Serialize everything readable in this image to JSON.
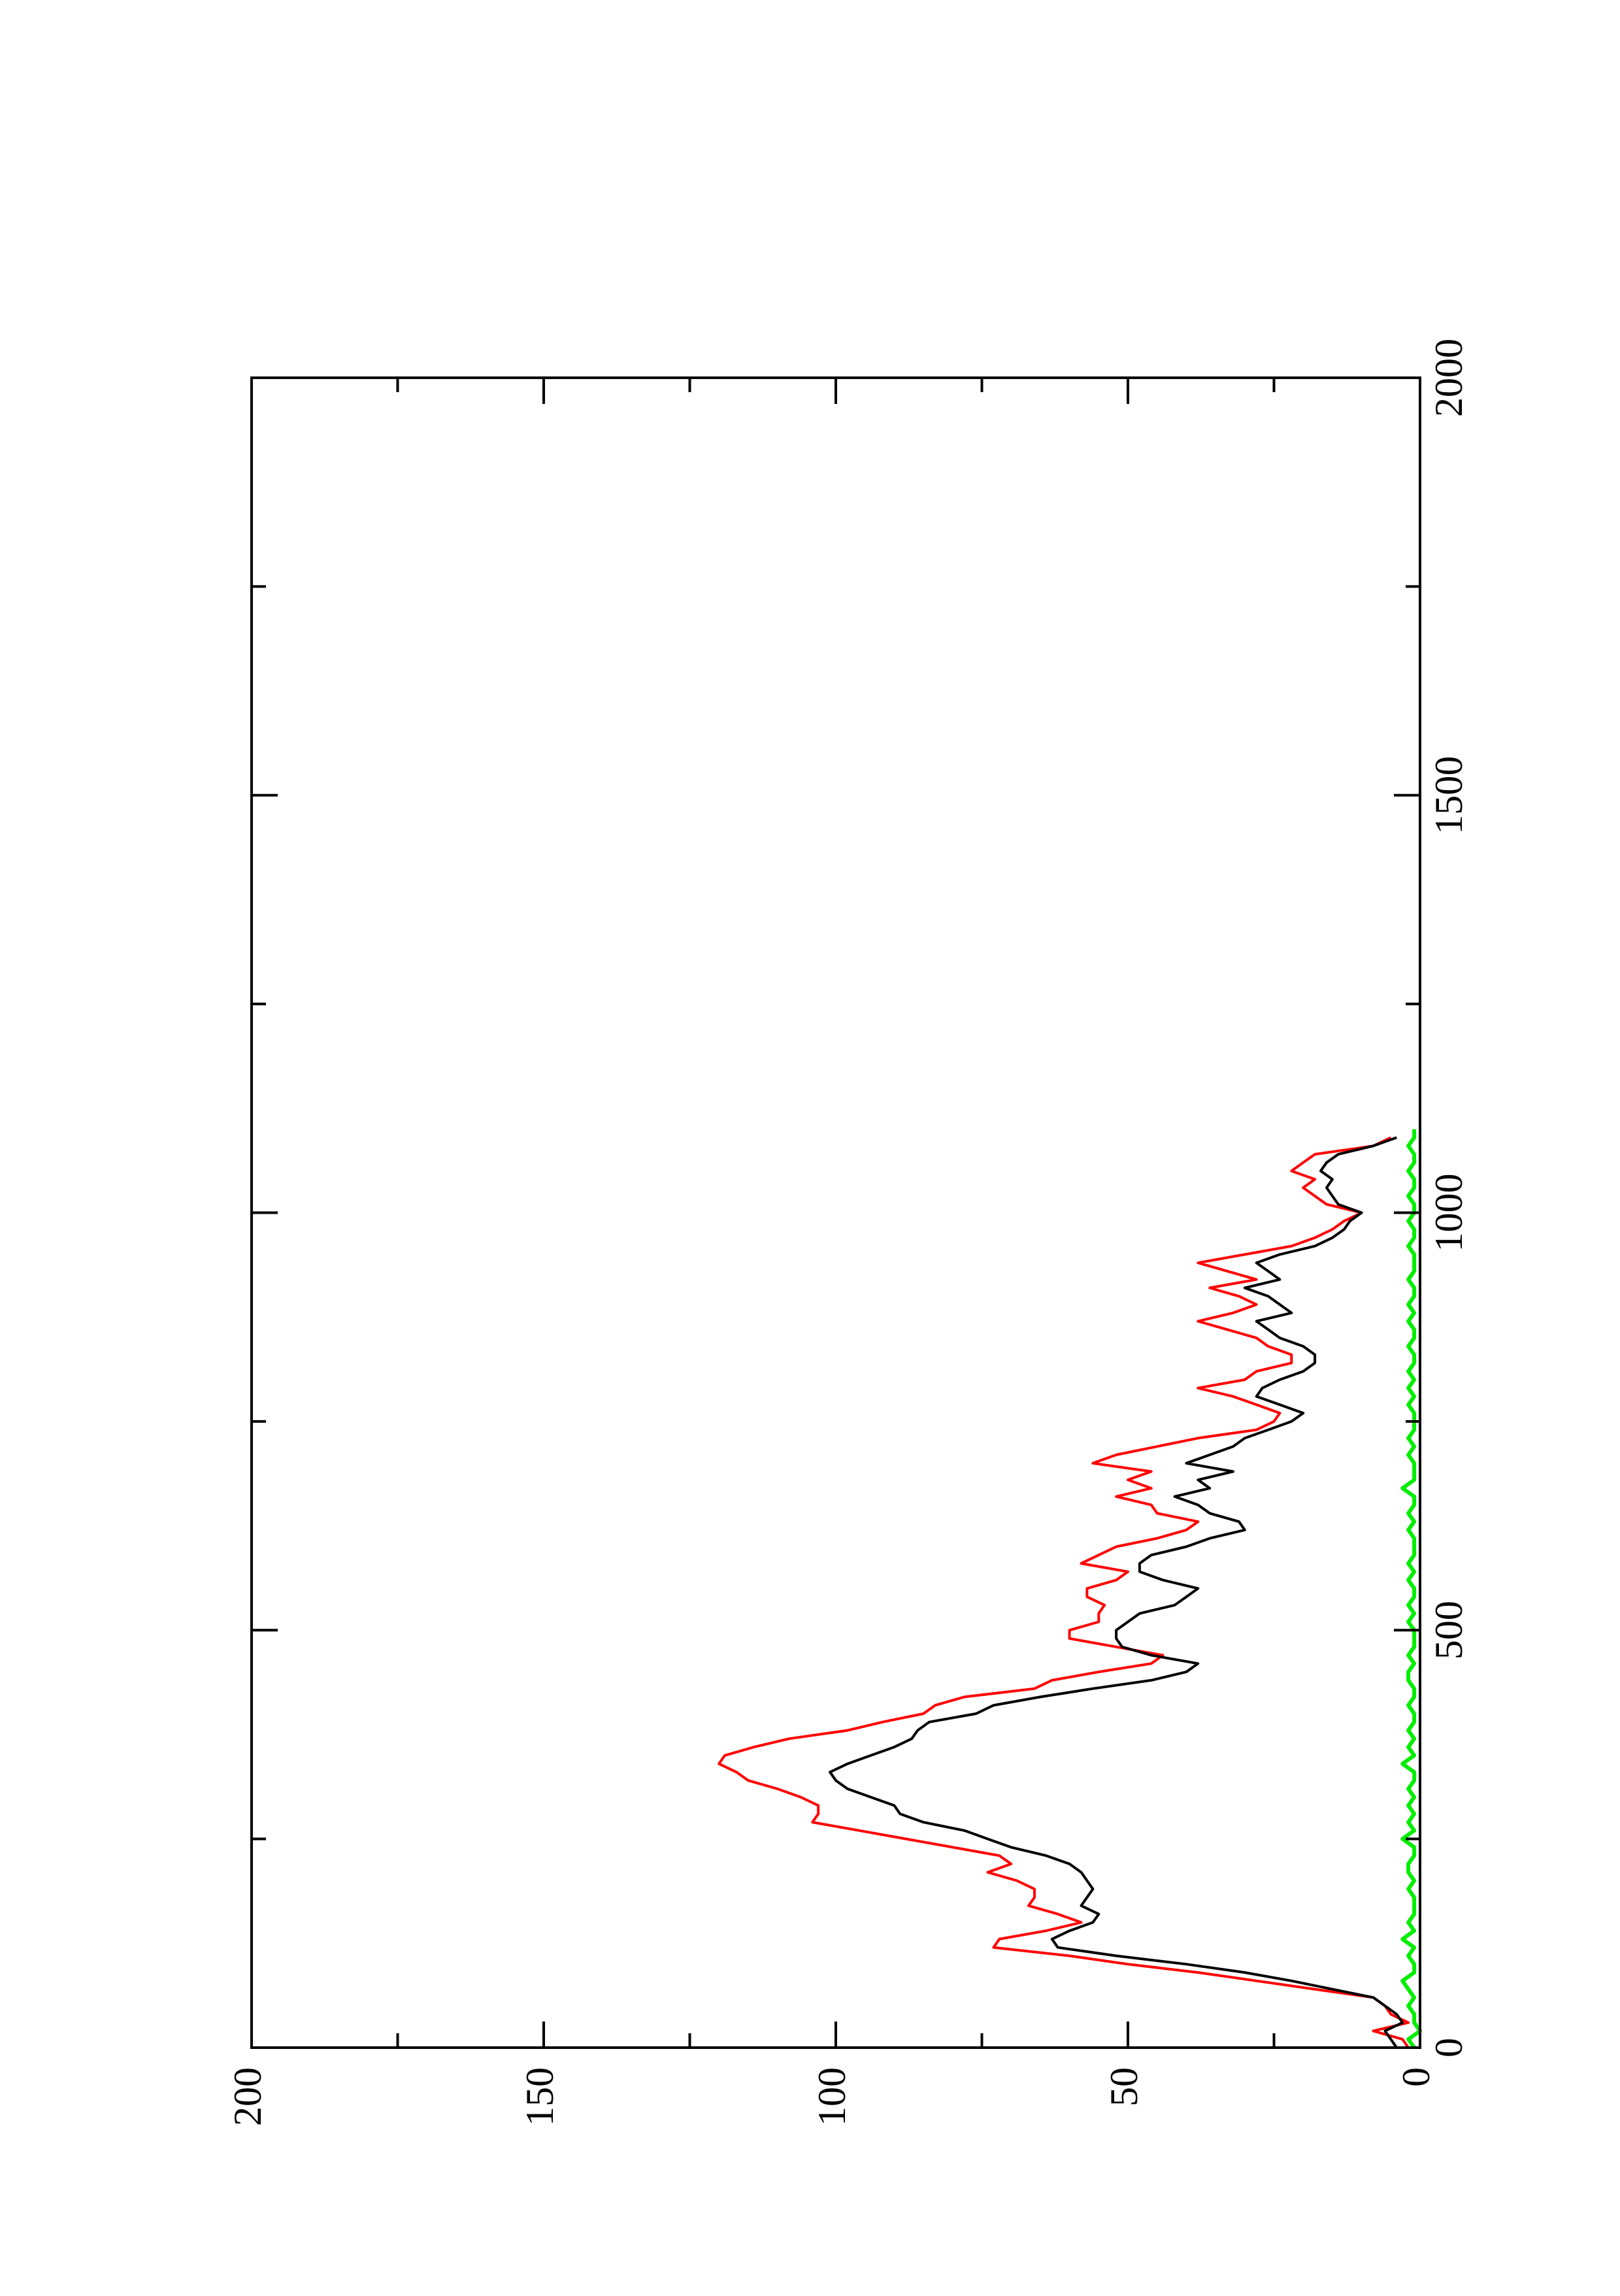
{
  "chart_data": {
    "type": "line",
    "orientation": "rotated-90-ccw",
    "title": "",
    "xlabel": "",
    "ylabel": "",
    "xlim": [
      0,
      2000
    ],
    "ylim": [
      0,
      200
    ],
    "x_ticks_major": [
      0,
      500,
      1000,
      1500,
      2000
    ],
    "x_ticks_minor": [
      250,
      750,
      1250,
      1750
    ],
    "y_ticks_major": [
      0,
      50,
      100,
      150,
      200
    ],
    "y_ticks_minor": [
      25,
      75,
      125,
      175
    ],
    "x_tick_labels": [
      "0",
      "500",
      "1000",
      "1500",
      "2000"
    ],
    "y_tick_labels": [
      "0",
      "50",
      "100",
      "150",
      "200"
    ],
    "grid": false,
    "legend": "none",
    "series": [
      {
        "color": "#ff0000",
        "x": [
          0,
          10,
          20,
          30,
          40,
          50,
          60,
          70,
          80,
          90,
          100,
          110,
          120,
          130,
          140,
          150,
          160,
          170,
          180,
          190,
          200,
          210,
          220,
          230,
          240,
          250,
          260,
          270,
          280,
          290,
          300,
          310,
          320,
          330,
          340,
          350,
          360,
          370,
          380,
          390,
          400,
          410,
          420,
          430,
          440,
          450,
          460,
          470,
          480,
          490,
          500,
          510,
          520,
          530,
          540,
          550,
          560,
          570,
          580,
          590,
          600,
          610,
          620,
          630,
          640,
          650,
          660,
          670,
          680,
          690,
          700,
          710,
          720,
          730,
          740,
          750,
          760,
          770,
          780,
          790,
          800,
          810,
          820,
          830,
          840,
          850,
          860,
          870,
          880,
          890,
          900,
          910,
          920,
          930,
          940,
          950,
          960,
          970,
          980,
          990,
          1000,
          1010,
          1020,
          1030,
          1040,
          1050,
          1060,
          1070,
          1080,
          1090
        ],
        "y": [
          2,
          3,
          8,
          2,
          5,
          6,
          8,
          18,
          28,
          38,
          50,
          60,
          73,
          72,
          64,
          58,
          62,
          67,
          66,
          66,
          69,
          74,
          70,
          72,
          80,
          88,
          96,
          104,
          103,
          103,
          106,
          110,
          115,
          117,
          120,
          119,
          114,
          108,
          98,
          92,
          85,
          83,
          78,
          66,
          63,
          55,
          46,
          44,
          52,
          60,
          60,
          55,
          55,
          54,
          57,
          57,
          52,
          50,
          58,
          55,
          52,
          45,
          40,
          38,
          45,
          46,
          52,
          46,
          50,
          46,
          56,
          52,
          45,
          38,
          28,
          25,
          24,
          28,
          32,
          38,
          30,
          28,
          22,
          22,
          26,
          28,
          33,
          38,
          32,
          28,
          31,
          36,
          28,
          33,
          38,
          30,
          22,
          18,
          15,
          13,
          10,
          16,
          18,
          20,
          18,
          22,
          20,
          18,
          8,
          5
        ],
        "values": [
          2,
          3,
          8,
          2,
          5,
          6,
          8,
          18,
          28,
          38,
          50,
          60,
          73,
          72,
          64,
          58,
          62,
          67,
          66,
          66,
          69,
          74,
          70,
          72,
          80,
          88,
          96,
          104,
          103,
          103,
          106,
          110,
          115,
          117,
          120,
          119,
          114,
          108,
          98,
          92,
          85,
          83,
          78,
          66,
          63,
          55,
          46,
          44,
          52,
          60,
          60,
          55,
          55,
          54,
          57,
          57,
          52,
          50,
          58,
          55,
          52,
          45,
          40,
          38,
          45,
          46,
          52,
          46,
          50,
          46,
          56,
          52,
          45,
          38,
          28,
          25,
          24,
          28,
          32,
          38,
          30,
          28,
          22,
          22,
          26,
          28,
          33,
          38,
          32,
          28,
          31,
          36,
          28,
          33,
          38,
          30,
          22,
          18,
          15,
          13,
          10,
          16,
          18,
          20,
          18,
          22,
          20,
          18,
          8,
          5
        ]
      },
      {
        "color": "#000000",
        "x": [
          0,
          10,
          20,
          30,
          40,
          50,
          60,
          70,
          80,
          90,
          100,
          110,
          120,
          130,
          140,
          150,
          160,
          170,
          180,
          190,
          200,
          210,
          220,
          230,
          240,
          250,
          260,
          270,
          280,
          290,
          300,
          310,
          320,
          330,
          340,
          350,
          360,
          370,
          380,
          390,
          400,
          410,
          420,
          430,
          440,
          450,
          460,
          470,
          480,
          490,
          500,
          510,
          520,
          530,
          540,
          550,
          560,
          570,
          580,
          590,
          600,
          610,
          620,
          630,
          640,
          650,
          660,
          670,
          680,
          690,
          700,
          710,
          720,
          730,
          740,
          750,
          760,
          770,
          780,
          790,
          800,
          810,
          820,
          830,
          840,
          850,
          860,
          870,
          880,
          890,
          900,
          910,
          920,
          930,
          940,
          950,
          960,
          970,
          980,
          990,
          1000,
          1010,
          1020,
          1030,
          1040,
          1050,
          1060,
          1070,
          1080,
          1090
        ],
        "y": [
          4,
          5,
          6,
          3,
          4,
          6,
          8,
          15,
          22,
          30,
          40,
          52,
          62,
          63,
          60,
          56,
          55,
          58,
          57,
          56,
          57,
          58,
          60,
          64,
          70,
          74,
          78,
          85,
          89,
          90,
          94,
          98,
          100,
          101,
          98,
          94,
          90,
          87,
          86,
          84,
          76,
          73,
          65,
          56,
          46,
          40,
          38,
          46,
          51,
          52,
          52,
          50,
          48,
          42,
          40,
          38,
          44,
          48,
          48,
          46,
          40,
          36,
          30,
          31,
          36,
          38,
          42,
          36,
          38,
          32,
          40,
          36,
          32,
          30,
          26,
          22,
          20,
          24,
          28,
          27,
          24,
          20,
          18,
          18,
          20,
          24,
          26,
          28,
          22,
          24,
          26,
          30,
          24,
          26,
          28,
          24,
          18,
          15,
          13,
          12,
          10,
          14,
          15,
          16,
          15,
          17,
          16,
          14,
          8,
          4
        ],
        "values": [
          4,
          5,
          6,
          3,
          4,
          6,
          8,
          15,
          22,
          30,
          40,
          52,
          62,
          63,
          60,
          56,
          55,
          58,
          57,
          56,
          57,
          58,
          60,
          64,
          70,
          74,
          78,
          85,
          89,
          90,
          94,
          98,
          100,
          101,
          98,
          94,
          90,
          87,
          86,
          84,
          76,
          73,
          65,
          56,
          46,
          40,
          38,
          46,
          51,
          52,
          52,
          50,
          48,
          42,
          40,
          38,
          44,
          48,
          48,
          46,
          40,
          36,
          30,
          31,
          36,
          38,
          42,
          36,
          38,
          32,
          40,
          36,
          32,
          30,
          26,
          22,
          20,
          24,
          28,
          27,
          24,
          20,
          18,
          18,
          20,
          24,
          26,
          28,
          22,
          24,
          26,
          30,
          24,
          26,
          28,
          24,
          18,
          15,
          13,
          12,
          10,
          14,
          15,
          16,
          15,
          17,
          16,
          14,
          8,
          4
        ]
      },
      {
        "color": "#00ee00",
        "x": [
          0,
          10,
          20,
          30,
          40,
          50,
          60,
          70,
          80,
          90,
          100,
          110,
          120,
          130,
          140,
          150,
          160,
          170,
          180,
          190,
          200,
          210,
          220,
          230,
          240,
          250,
          260,
          270,
          280,
          290,
          300,
          310,
          320,
          330,
          340,
          350,
          360,
          370,
          380,
          390,
          400,
          410,
          420,
          430,
          440,
          450,
          460,
          470,
          480,
          490,
          500,
          510,
          520,
          530,
          540,
          550,
          560,
          570,
          580,
          590,
          600,
          610,
          620,
          630,
          640,
          650,
          660,
          670,
          680,
          690,
          700,
          710,
          720,
          730,
          740,
          750,
          760,
          770,
          780,
          790,
          800,
          810,
          820,
          830,
          840,
          850,
          860,
          870,
          880,
          890,
          900,
          910,
          920,
          930,
          940,
          950,
          960,
          970,
          980,
          990,
          1000,
          1010,
          1020,
          1030,
          1040,
          1050,
          1060,
          1070,
          1080,
          1090,
          1100
        ],
        "y": [
          1,
          2,
          0,
          1,
          1,
          2,
          1,
          2,
          3,
          1,
          1,
          2,
          1,
          3,
          1,
          2,
          1,
          1,
          1,
          2,
          1,
          2,
          2,
          1,
          1,
          3,
          1,
          2,
          1,
          2,
          1,
          2,
          1,
          1,
          3,
          1,
          2,
          1,
          2,
          1,
          1,
          2,
          1,
          1,
          2,
          2,
          1,
          2,
          1,
          1,
          1,
          2,
          1,
          2,
          1,
          1,
          2,
          1,
          2,
          1,
          1,
          1,
          2,
          1,
          2,
          1,
          1,
          3,
          1,
          1,
          1,
          2,
          1,
          2,
          1,
          1,
          1,
          2,
          1,
          2,
          1,
          2,
          1,
          1,
          2,
          1,
          1,
          2,
          1,
          2,
          1,
          1,
          2,
          1,
          1,
          1,
          2,
          1,
          1,
          2,
          1,
          1,
          2,
          1,
          1,
          2,
          1,
          1,
          2,
          1,
          1
        ],
        "values": [
          1,
          2,
          0,
          1,
          1,
          2,
          1,
          2,
          3,
          1,
          1,
          2,
          1,
          3,
          1,
          2,
          1,
          1,
          1,
          2,
          1,
          2,
          2,
          1,
          1,
          3,
          1,
          2,
          1,
          2,
          1,
          2,
          1,
          1,
          3,
          1,
          2,
          1,
          2,
          1,
          1,
          2,
          1,
          1,
          2,
          2,
          1,
          2,
          1,
          1,
          1,
          2,
          1,
          2,
          1,
          1,
          2,
          1,
          2,
          1,
          1,
          1,
          2,
          1,
          2,
          1,
          1,
          3,
          1,
          1,
          1,
          2,
          1,
          2,
          1,
          1,
          1,
          2,
          1,
          2,
          1,
          2,
          1,
          1,
          2,
          1,
          1,
          2,
          1,
          2,
          1,
          1,
          2,
          1,
          1,
          1,
          2,
          1,
          1,
          2,
          1,
          1,
          2,
          1,
          1,
          2,
          1,
          1,
          2,
          1,
          1
        ]
      }
    ]
  }
}
